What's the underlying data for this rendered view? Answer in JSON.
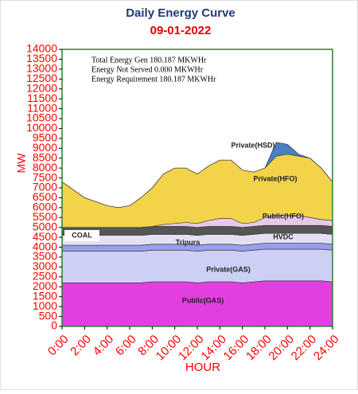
{
  "chart_data": {
    "type": "stacked_area",
    "title": "Daily Energy Curve",
    "subtitle": "09-01-2022",
    "y_label": "MW",
    "x_label": "HOUR",
    "annotations": [
      "Total Energy Gen 180.187 MKWHr",
      "Energy Not Served  0.000 MKWHr",
      "Energy Requirement      180.187 MKWHr"
    ],
    "x": [
      0,
      1,
      2,
      3,
      4,
      5,
      6,
      7,
      8,
      9,
      10,
      11,
      12,
      13,
      14,
      15,
      16,
      17,
      18,
      19,
      20,
      21,
      22,
      23,
      24
    ],
    "xlim": [
      0,
      24
    ],
    "xticks": [
      {
        "value": 0,
        "label": "0:00"
      },
      {
        "value": 2,
        "label": "2:00"
      },
      {
        "value": 4,
        "label": "4:00"
      },
      {
        "value": 6,
        "label": "6:00"
      },
      {
        "value": 8,
        "label": "8:00"
      },
      {
        "value": 10,
        "label": "10:00"
      },
      {
        "value": 12,
        "label": "12:00"
      },
      {
        "value": 14,
        "label": "14:00"
      },
      {
        "value": 16,
        "label": "16:00"
      },
      {
        "value": 18,
        "label": "18:00"
      },
      {
        "value": 20,
        "label": "20:00"
      },
      {
        "value": 22,
        "label": "22:00"
      },
      {
        "value": 24,
        "label": "24:00"
      }
    ],
    "ylim": [
      0,
      14000
    ],
    "yticks": [
      0,
      500,
      1000,
      1500,
      2000,
      2500,
      3000,
      3500,
      4000,
      4500,
      5000,
      5500,
      6000,
      6500,
      7000,
      7500,
      8000,
      8500,
      9000,
      9500,
      10000,
      10500,
      11000,
      11500,
      12000,
      12500,
      13000,
      13500,
      14000
    ],
    "series": [
      {
        "name": "Public(GAS)",
        "color": "#e23fe0",
        "values": [
          2200,
          2200,
          2200,
          2200,
          2200,
          2200,
          2200,
          2200,
          2250,
          2250,
          2250,
          2250,
          2200,
          2250,
          2250,
          2250,
          2200,
          2250,
          2300,
          2300,
          2300,
          2300,
          2300,
          2300,
          2250
        ]
      },
      {
        "name": "Private(GAS)",
        "color": "#cdd0f4",
        "values": [
          1600,
          1600,
          1600,
          1600,
          1600,
          1600,
          1600,
          1600,
          1600,
          1600,
          1600,
          1600,
          1600,
          1600,
          1600,
          1600,
          1600,
          1600,
          1600,
          1600,
          1600,
          1600,
          1600,
          1600,
          1600
        ]
      },
      {
        "name": "Tripura",
        "color": "#9a9cec",
        "values": [
          300,
          300,
          300,
          300,
          300,
          300,
          300,
          300,
          300,
          300,
          300,
          300,
          300,
          300,
          300,
          300,
          300,
          300,
          300,
          300,
          300,
          300,
          300,
          300,
          300
        ]
      },
      {
        "name": "HVDC",
        "color": "#e4e0f4",
        "values": [
          500,
          500,
          500,
          500,
          500,
          500,
          500,
          500,
          500,
          500,
          500,
          500,
          500,
          500,
          500,
          500,
          500,
          500,
          500,
          500,
          500,
          500,
          500,
          500,
          500
        ]
      },
      {
        "name": "COAL",
        "color": "#555555",
        "values": [
          400,
          400,
          400,
          400,
          400,
          400,
          400,
          400,
          400,
          400,
          400,
          400,
          400,
          400,
          400,
          400,
          400,
          400,
          400,
          400,
          400,
          400,
          400,
          400,
          400
        ]
      },
      {
        "name": "Public(HFO)",
        "color": "#e8c8e8",
        "values": [
          0,
          0,
          0,
          0,
          0,
          0,
          0,
          0,
          0,
          100,
          150,
          200,
          200,
          300,
          400,
          400,
          200,
          200,
          400,
          500,
          500,
          500,
          400,
          300,
          300
        ]
      },
      {
        "name": "Private(HFO)",
        "color": "#f2d34a",
        "values": [
          2300,
          1900,
          1500,
          1300,
          1100,
          1000,
          1100,
          1500,
          1950,
          2550,
          2800,
          2750,
          2500,
          2750,
          2950,
          2950,
          2700,
          2550,
          2500,
          3000,
          3100,
          3000,
          3000,
          2600,
          1950
        ]
      },
      {
        "name": "Private(HSD)",
        "color": "#4a7fc0",
        "values": [
          0,
          0,
          0,
          0,
          0,
          0,
          0,
          0,
          0,
          0,
          0,
          0,
          0,
          0,
          0,
          0,
          0,
          0,
          0,
          700,
          500,
          100,
          0,
          0,
          0
        ]
      }
    ]
  }
}
